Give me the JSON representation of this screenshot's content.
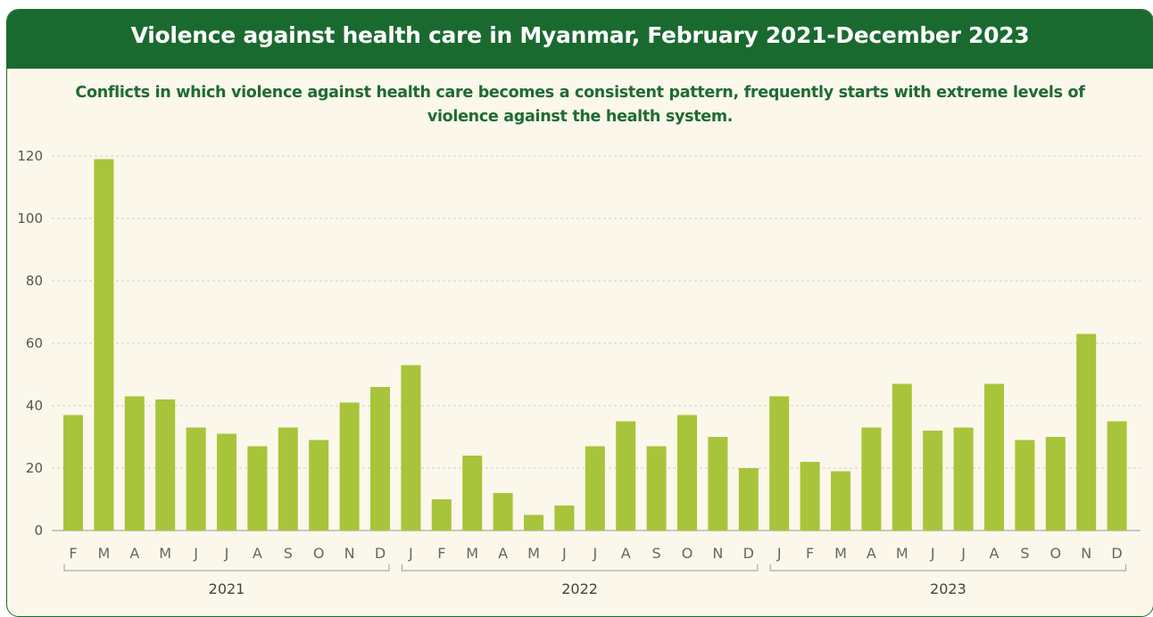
{
  "header": {
    "title": "Violence against health care in Myanmar, February 2021-December 2023",
    "subtitle_line1": "Conflicts in which violence against health care becomes a consistent pattern, frequently starts with extreme levels of",
    "subtitle_line2": "violence against the health system."
  },
  "colors": {
    "header_bg": "#1a6a30",
    "panel_bg": "#fbf7ea",
    "bar": "#a8c43a",
    "subtitle_text": "#1e6b34"
  },
  "chart_data": {
    "type": "bar",
    "categories": [
      "F",
      "M",
      "A",
      "M",
      "J",
      "J",
      "A",
      "S",
      "O",
      "N",
      "D",
      "J",
      "F",
      "M",
      "A",
      "M",
      "J",
      "J",
      "A",
      "S",
      "O",
      "N",
      "D",
      "J",
      "F",
      "M",
      "A",
      "M",
      "J",
      "J",
      "A",
      "S",
      "O",
      "N",
      "D"
    ],
    "values": [
      37,
      119,
      43,
      42,
      33,
      31,
      27,
      33,
      29,
      41,
      46,
      53,
      10,
      24,
      12,
      5,
      8,
      27,
      35,
      27,
      37,
      30,
      20,
      43,
      22,
      19,
      33,
      47,
      32,
      33,
      47,
      29,
      30,
      63,
      35
    ],
    "groups": [
      {
        "label": "2021",
        "start": 0,
        "end": 10
      },
      {
        "label": "2022",
        "start": 11,
        "end": 22
      },
      {
        "label": "2023",
        "start": 23,
        "end": 34
      }
    ],
    "y_ticks": [
      "0",
      "20",
      "40",
      "60",
      "80",
      "100",
      "120"
    ],
    "ylim": [
      0,
      120
    ],
    "grid": true,
    "legend": "none"
  }
}
